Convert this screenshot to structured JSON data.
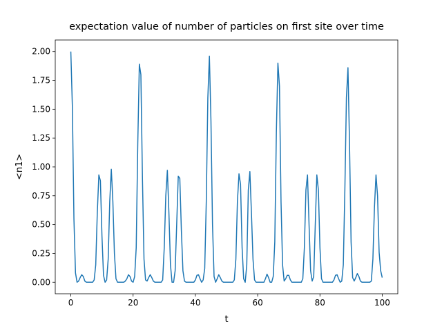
{
  "chart_data": {
    "type": "line",
    "title": "expectation value of number of particles on first site over time",
    "xlabel": "t",
    "ylabel": "<n1>",
    "x": [
      0,
      0.5,
      1,
      1.5,
      2,
      2.5,
      3,
      3.5,
      4,
      4.5,
      5,
      5.5,
      6,
      6.5,
      7,
      7.5,
      8,
      8.5,
      9,
      9.5,
      10,
      10.5,
      11,
      11.5,
      12,
      12.5,
      13,
      13.5,
      14,
      14.5,
      15,
      15.5,
      16,
      16.5,
      17,
      17.5,
      18,
      18.5,
      19,
      19.5,
      20,
      20.5,
      21,
      21.5,
      22,
      22.5,
      23,
      23.5,
      24,
      24.5,
      25,
      25.5,
      26,
      26.5,
      27,
      27.5,
      28,
      28.5,
      29,
      29.5,
      30,
      30.5,
      31,
      31.5,
      32,
      32.5,
      33,
      33.5,
      34,
      34.5,
      35,
      35.5,
      36,
      36.5,
      37,
      37.5,
      38,
      38.5,
      39,
      39.5,
      40,
      40.5,
      41,
      41.5,
      42,
      42.5,
      43,
      43.5,
      44,
      44.5,
      45,
      45.5,
      46,
      46.5,
      47,
      47.5,
      48,
      48.5,
      49,
      49.5,
      50,
      50.5,
      51,
      51.5,
      52,
      52.5,
      53,
      53.5,
      54,
      54.5,
      55,
      55.5,
      56,
      56.5,
      57,
      57.5,
      58,
      58.5,
      59,
      59.5,
      60,
      60.5,
      61,
      61.5,
      62,
      62.5,
      63,
      63.5,
      64,
      64.5,
      65,
      65.5,
      66,
      66.5,
      67,
      67.5,
      68,
      68.5,
      69,
      69.5,
      70,
      70.5,
      71,
      71.5,
      72,
      72.5,
      73,
      73.5,
      74,
      74.5,
      75,
      75.5,
      76,
      76.5,
      77,
      77.5,
      78,
      78.5,
      79,
      79.5,
      80,
      80.5,
      81,
      81.5,
      82,
      82.5,
      83,
      83.5,
      84,
      84.5,
      85,
      85.5,
      86,
      86.5,
      87,
      87.5,
      88,
      88.5,
      89,
      89.5,
      90,
      90.5,
      91,
      91.5,
      92,
      92.5,
      93,
      93.5,
      94,
      94.5,
      95,
      95.5,
      96,
      96.5,
      97,
      97.5,
      98,
      98.5,
      99,
      99.5,
      100
    ],
    "series": [
      {
        "name": "<n1>",
        "color": "#1f77b4",
        "values": [
          2.0,
          1.52,
          0.55,
          0.08,
          0,
          0.01,
          0.04,
          0.065,
          0.05,
          0.01,
          0,
          0,
          0,
          0,
          0,
          0.02,
          0.15,
          0.6,
          0.93,
          0.88,
          0.4,
          0.06,
          0,
          0.02,
          0.2,
          0.7,
          0.98,
          0.7,
          0.25,
          0.03,
          0,
          0,
          0,
          0,
          0,
          0.01,
          0.03,
          0.065,
          0.05,
          0.01,
          0,
          0.05,
          0.3,
          1.2,
          1.89,
          1.8,
          0.9,
          0.2,
          0.02,
          0.01,
          0.04,
          0.065,
          0.04,
          0.01,
          0,
          0,
          0,
          0,
          0,
          0.02,
          0.3,
          0.75,
          0.97,
          0.6,
          0.15,
          0,
          0,
          0.1,
          0.5,
          0.92,
          0.9,
          0.45,
          0.1,
          0.01,
          0,
          0,
          0,
          0,
          0,
          0,
          0.02,
          0.06,
          0.065,
          0.03,
          0,
          0.02,
          0.12,
          0.7,
          1.6,
          1.96,
          1.4,
          0.5,
          0.05,
          0,
          0.03,
          0.065,
          0.04,
          0.01,
          0,
          0,
          0,
          0,
          0,
          0,
          0,
          0.02,
          0.2,
          0.7,
          0.94,
          0.85,
          0.3,
          0.03,
          0,
          0.15,
          0.8,
          0.96,
          0.6,
          0.2,
          0.02,
          0,
          0,
          0,
          0,
          0,
          0,
          0.03,
          0.07,
          0.04,
          0,
          0,
          0.05,
          0.35,
          1.3,
          1.9,
          1.7,
          0.7,
          0.15,
          0.01,
          0.03,
          0.06,
          0.06,
          0.02,
          0,
          0,
          0,
          0,
          0,
          0,
          0,
          0.03,
          0.3,
          0.8,
          0.93,
          0.5,
          0.1,
          0.01,
          0.05,
          0.5,
          0.93,
          0.8,
          0.3,
          0.03,
          0,
          0,
          0,
          0,
          0,
          0,
          0,
          0.02,
          0.06,
          0.065,
          0.03,
          0,
          0.01,
          0.15,
          0.8,
          1.6,
          1.86,
          1.2,
          0.35,
          0.04,
          0.01,
          0.04,
          0.075,
          0.05,
          0.01,
          0,
          0,
          0,
          0,
          0,
          0,
          0.01,
          0.2,
          0.65,
          0.93,
          0.75,
          0.26,
          0.1,
          0.04
        ]
      }
    ],
    "xlim": [
      -5,
      105
    ],
    "ylim": [
      -0.1,
      2.1
    ],
    "xticks": [
      0,
      20,
      40,
      60,
      80,
      100
    ],
    "yticks": [
      {
        "value": 0,
        "label": "0.00"
      },
      {
        "value": 0.25,
        "label": "0.25"
      },
      {
        "value": 0.5,
        "label": "0.50"
      },
      {
        "value": 0.75,
        "label": "0.75"
      },
      {
        "value": 1,
        "label": "1.00"
      },
      {
        "value": 1.25,
        "label": "1.25"
      },
      {
        "value": 1.5,
        "label": "1.50"
      },
      {
        "value": 1.75,
        "label": "1.75"
      },
      {
        "value": 2,
        "label": "2.00"
      }
    ],
    "grid": false
  }
}
